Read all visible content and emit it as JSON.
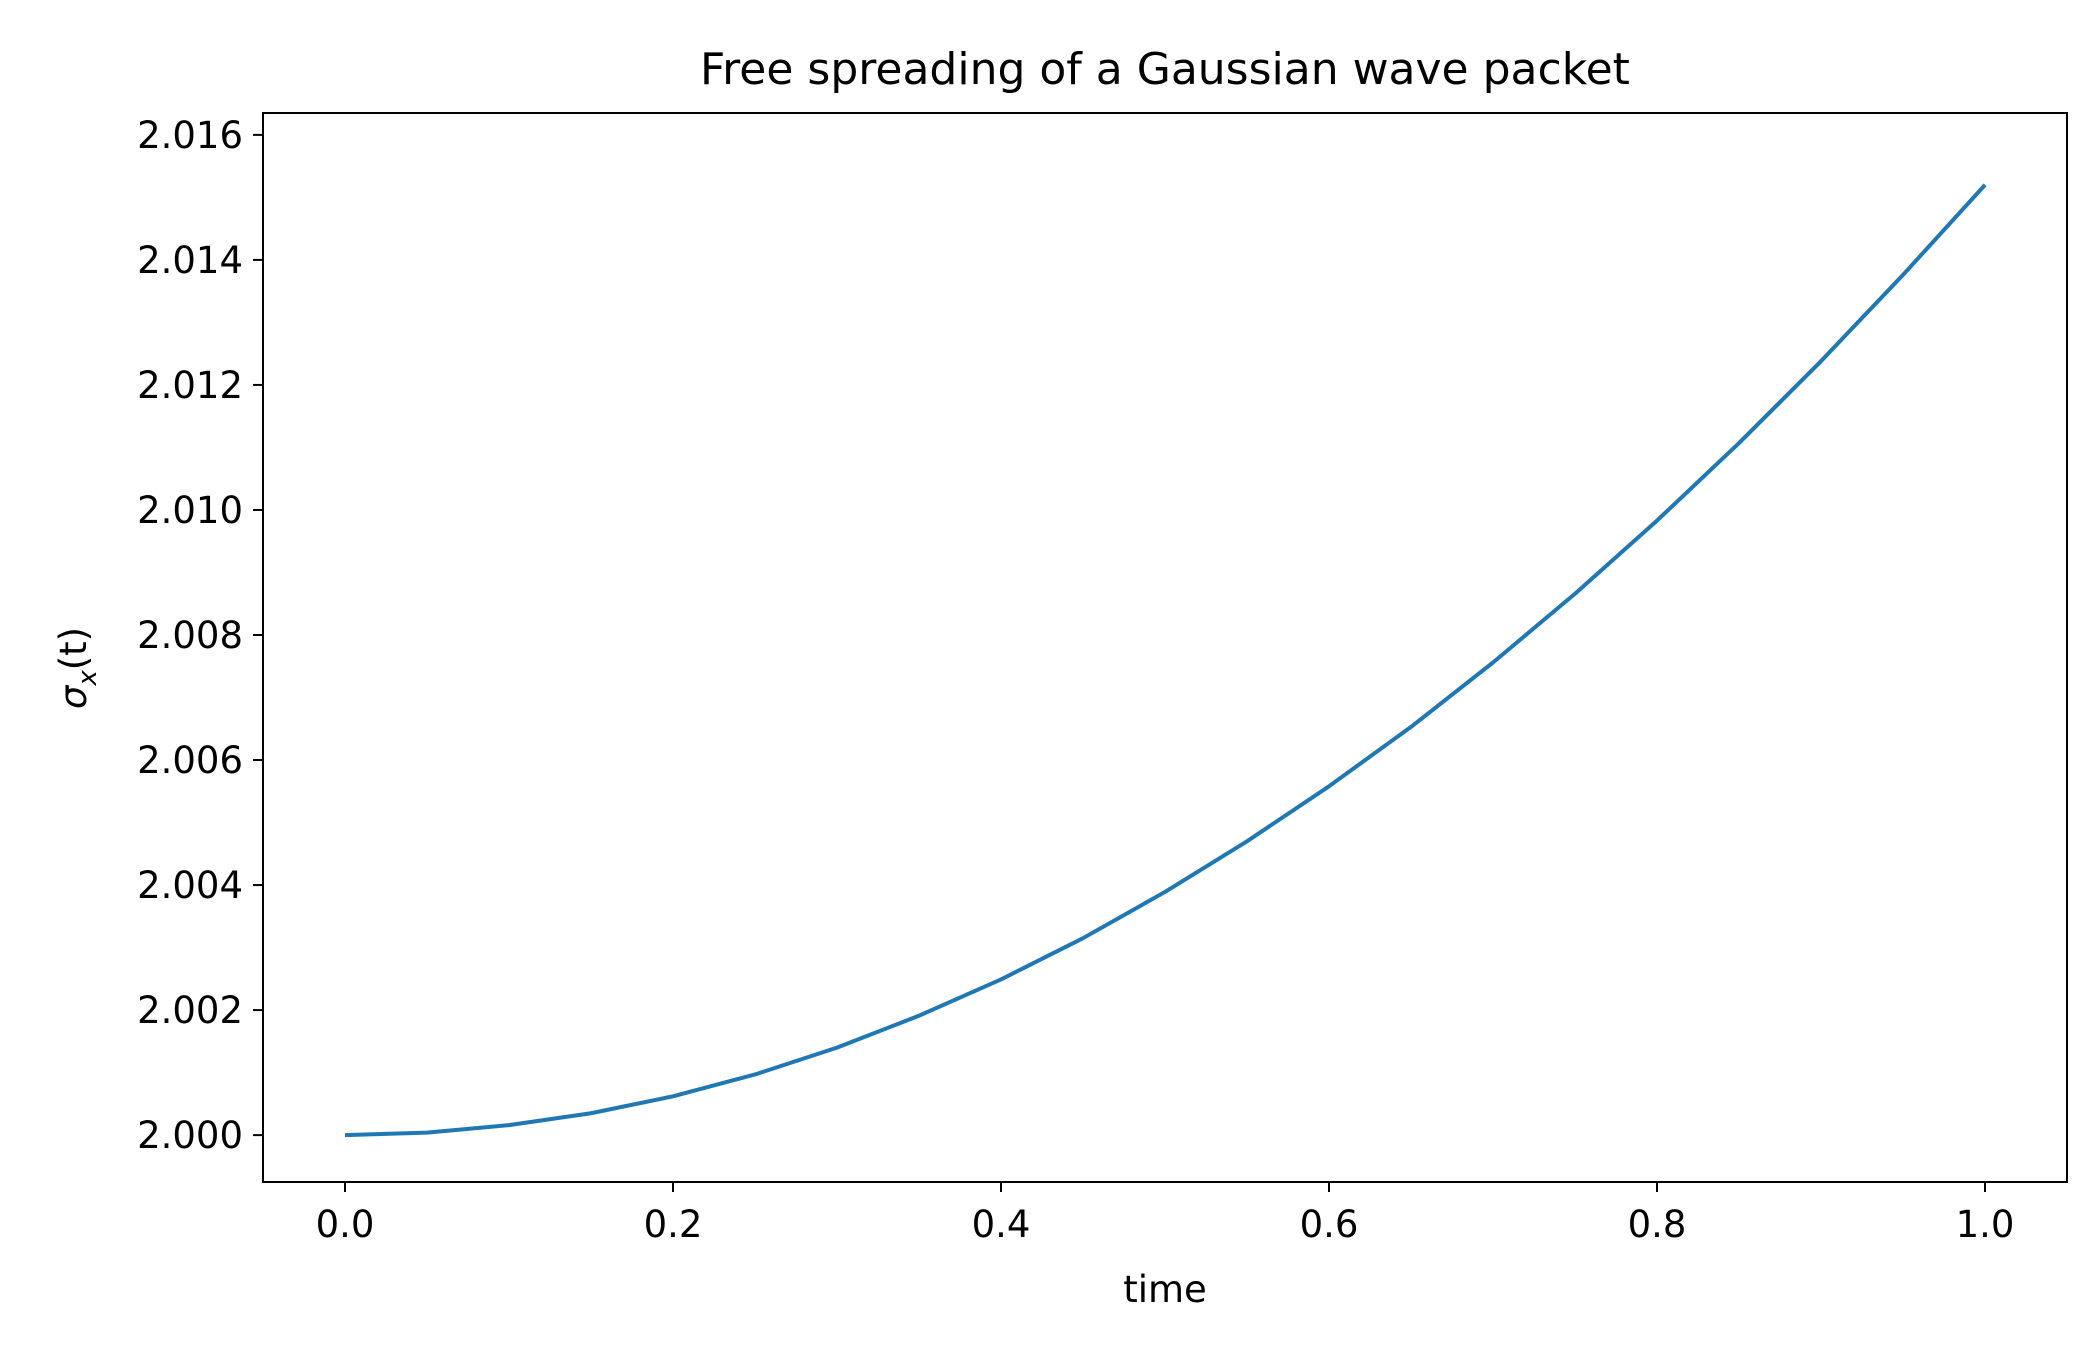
{
  "chart_data": {
    "type": "line",
    "title": "Free spreading of a Gaussian wave packet",
    "xlabel": "time",
    "ylabel": "σx(t)",
    "ylabel_parts": {
      "symbol": "σ",
      "subscript": "x",
      "argument": "(t)"
    },
    "xlim": [
      -0.05,
      1.05
    ],
    "ylim": [
      1.99925,
      2.01635
    ],
    "xticks": [
      0.0,
      0.2,
      0.4,
      0.6,
      0.8,
      1.0
    ],
    "xtick_labels": [
      "0.0",
      "0.2",
      "0.4",
      "0.6",
      "0.8",
      "1.0"
    ],
    "yticks": [
      2.0,
      2.002,
      2.004,
      2.006,
      2.008,
      2.01,
      2.012,
      2.014,
      2.016
    ],
    "ytick_labels": [
      "2.000",
      "2.002",
      "2.004",
      "2.006",
      "2.008",
      "2.010",
      "2.012",
      "2.014",
      "2.016"
    ],
    "grid": false,
    "legend": "none",
    "series": [
      {
        "color": "#1f77b4",
        "x": [
          0.0,
          0.05,
          0.1,
          0.15,
          0.2,
          0.25,
          0.3,
          0.35,
          0.4,
          0.45,
          0.5,
          0.55,
          0.6,
          0.65,
          0.7,
          0.75,
          0.8,
          0.85,
          0.9,
          0.95,
          1.0
        ],
        "y": [
          2.0,
          2.00004,
          2.00016,
          2.00035,
          2.00062,
          2.00097,
          2.0014,
          2.00191,
          2.00249,
          2.00315,
          2.00389,
          2.0047,
          2.00558,
          2.00653,
          2.00756,
          2.00866,
          2.00983,
          2.01107,
          2.01238,
          2.01376,
          2.0152
        ]
      }
    ]
  }
}
